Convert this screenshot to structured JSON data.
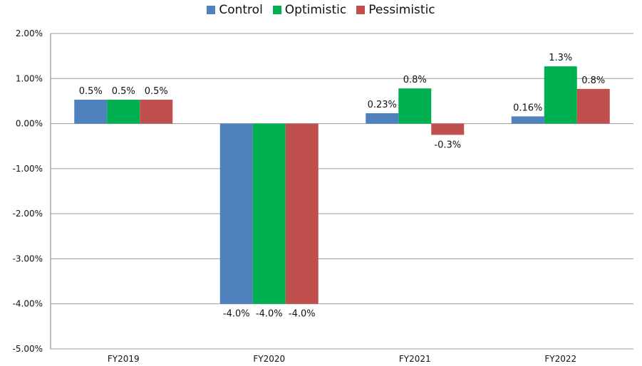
{
  "chart_data": {
    "type": "bar",
    "categories": [
      "FY2019",
      "FY2020",
      "FY2021",
      "FY2022"
    ],
    "series": [
      {
        "name": "Control",
        "color": "#4F81BD",
        "values": [
          0.53,
          -4.0,
          0.23,
          0.16
        ],
        "labels": [
          "0.5%",
          "-4.0%",
          "0.23%",
          "0.16%"
        ]
      },
      {
        "name": "Optimistic",
        "color": "#00B050",
        "values": [
          0.53,
          -4.0,
          0.78,
          1.27
        ],
        "labels": [
          "0.5%",
          "-4.0%",
          "0.8%",
          "1.3%"
        ]
      },
      {
        "name": "Pessimistic",
        "color": "#C0504D",
        "values": [
          0.53,
          -4.0,
          -0.25,
          0.77
        ],
        "labels": [
          "0.5%",
          "-4.0%",
          "-0.3%",
          "0.8%"
        ]
      }
    ],
    "yticks": [
      "2.00%",
      "1.00%",
      "0.00%",
      "-1.00%",
      "-2.00%",
      "-3.00%",
      "-4.00%",
      "-5.00%"
    ],
    "ylim": [
      -5,
      2
    ],
    "title": "",
    "xlabel": "",
    "ylabel": "",
    "legend_position": "top-center",
    "grid": true
  }
}
